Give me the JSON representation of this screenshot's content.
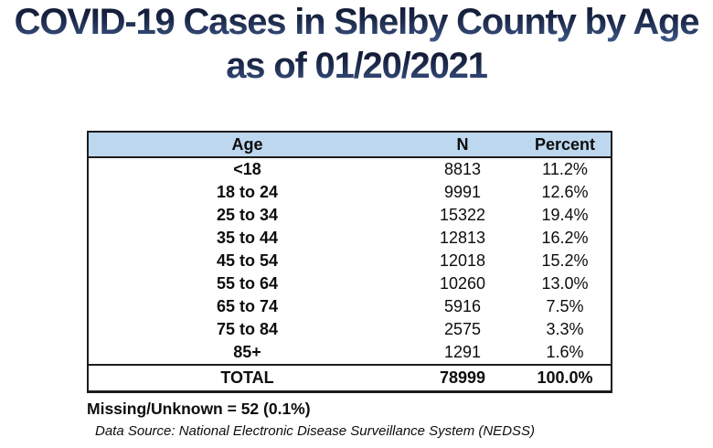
{
  "title": {
    "line1": "COVID-19 Cases in Shelby County by Age",
    "line2": "as of 01/20/2021"
  },
  "table": {
    "columns": [
      "Age",
      "N",
      "Percent"
    ],
    "rows": [
      {
        "age": "<18",
        "n": "8813",
        "percent": "11.2%"
      },
      {
        "age": "18 to 24",
        "n": "9991",
        "percent": "12.6%"
      },
      {
        "age": "25 to 34",
        "n": "15322",
        "percent": "19.4%"
      },
      {
        "age": "35 to 44",
        "n": "12813",
        "percent": "16.2%"
      },
      {
        "age": "45 to 54",
        "n": "12018",
        "percent": "15.2%"
      },
      {
        "age": "55 to 64",
        "n": "10260",
        "percent": "13.0%"
      },
      {
        "age": "65 to 74",
        "n": "5916",
        "percent": "7.5%"
      },
      {
        "age": "75 to 84",
        "n": "2575",
        "percent": "3.3%"
      },
      {
        "age": "85+",
        "n": "1291",
        "percent": "1.6%"
      }
    ],
    "total": {
      "age": "TOTAL",
      "n": "78999",
      "percent": "100.0%"
    }
  },
  "footer": {
    "missing": "Missing/Unknown = 52 (0.1%)",
    "source": "Data Source: National Electronic Disease Surveillance System (NEDSS)"
  },
  "colors": {
    "header_bg": "#BDD7EE",
    "border": "#1c1c1c",
    "title_gradient_top": "#10172e",
    "title_gradient_bottom": "#3d5788"
  },
  "chart_data": {
    "type": "table",
    "title": "COVID-19 Cases in Shelby County by Age as of 01/20/2021",
    "columns": [
      "Age",
      "N",
      "Percent"
    ],
    "categories": [
      "<18",
      "18 to 24",
      "25 to 34",
      "35 to 44",
      "45 to 54",
      "55 to 64",
      "65 to 74",
      "75 to 84",
      "85+"
    ],
    "series": [
      {
        "name": "N",
        "values": [
          8813,
          9991,
          15322,
          12813,
          12018,
          10260,
          5916,
          2575,
          1291
        ]
      },
      {
        "name": "Percent",
        "values": [
          11.2,
          12.6,
          19.4,
          16.2,
          15.2,
          13.0,
          7.5,
          3.3,
          1.6
        ]
      }
    ],
    "total": {
      "N": 78999,
      "Percent": 100.0
    },
    "annotations": [
      "Missing/Unknown = 52 (0.1%)",
      "Data Source: National Electronic Disease Surveillance System (NEDSS)"
    ]
  }
}
